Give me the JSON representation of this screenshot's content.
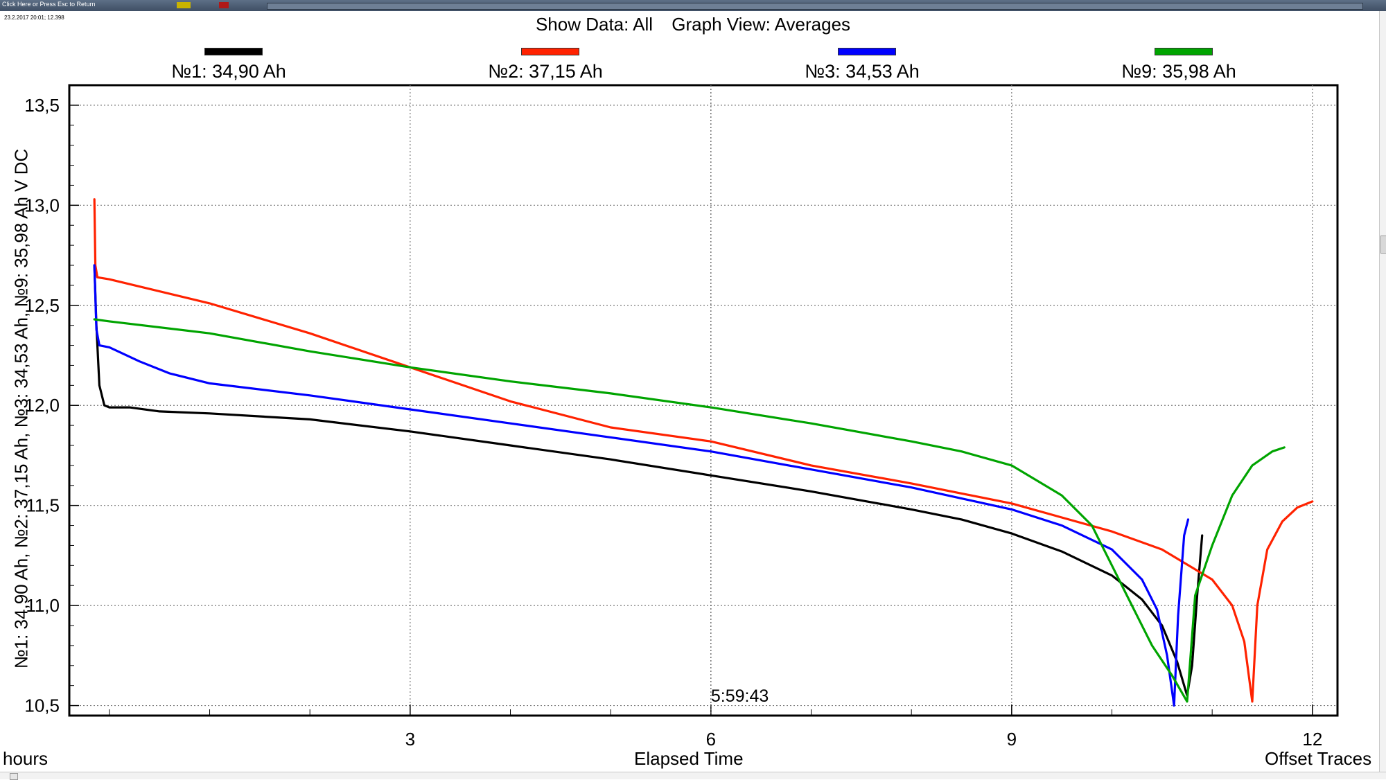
{
  "window": {
    "titlebar_text": "Click Here or Press Esc to Return",
    "timestamp": "23.2.2017 20:01; 12.398"
  },
  "header": {
    "show_data": "Show Data: All",
    "graph_view": "Graph View: Averages"
  },
  "legend": [
    {
      "label": "№1: 34,90 Ah",
      "color": "#000000"
    },
    {
      "label": "№2: 37,15 Ah",
      "color": "#ff2200"
    },
    {
      "label": "№3: 34,53 Ah",
      "color": "#0000ff"
    },
    {
      "label": "№9: 35,98 Ah",
      "color": "#00a400"
    }
  ],
  "axes": {
    "y_title": "№1: 34,90 Ah, №2: 37,15 Ah, №3: 34,53 Ah, №9: 35,98 Ah    V DC",
    "x_units": "hours",
    "x_title": "Elapsed Time",
    "offset_label": "Offset Traces",
    "cursor_time": "5:59:43"
  },
  "chart_data": {
    "type": "line",
    "title": "",
    "xlabel": "Elapsed Time",
    "ylabel": "V DC",
    "xlim": [
      -0.4,
      12.25
    ],
    "ylim": [
      10.45,
      13.6
    ],
    "x_ticks": [
      3,
      6,
      9,
      12
    ],
    "x_tick_labels": [
      "3",
      "6",
      "9",
      "12"
    ],
    "y_ticks": [
      10.5,
      11.0,
      11.5,
      12.0,
      12.5,
      13.0,
      13.5
    ],
    "y_tick_labels": [
      "10,5",
      "11,0",
      "11,5",
      "12,0",
      "12,5",
      "13,0",
      "13,5"
    ],
    "grid": true,
    "cursor_x": 6.0,
    "series": [
      {
        "name": "№1: 34,90 Ah",
        "color": "#000000",
        "points": [
          [
            -0.15,
            12.7
          ],
          [
            -0.13,
            12.4
          ],
          [
            -0.1,
            12.1
          ],
          [
            -0.05,
            12.0
          ],
          [
            0.0,
            11.99
          ],
          [
            0.2,
            11.99
          ],
          [
            0.5,
            11.97
          ],
          [
            1,
            11.96
          ],
          [
            2,
            11.93
          ],
          [
            3,
            11.87
          ],
          [
            4,
            11.8
          ],
          [
            5,
            11.73
          ],
          [
            6,
            11.65
          ],
          [
            7,
            11.57
          ],
          [
            8,
            11.48
          ],
          [
            8.5,
            11.43
          ],
          [
            9,
            11.36
          ],
          [
            9.5,
            11.27
          ],
          [
            10,
            11.15
          ],
          [
            10.3,
            11.03
          ],
          [
            10.5,
            10.9
          ],
          [
            10.65,
            10.72
          ],
          [
            10.75,
            10.55
          ],
          [
            10.8,
            10.7
          ],
          [
            10.85,
            11.05
          ],
          [
            10.9,
            11.35
          ]
        ]
      },
      {
        "name": "№2: 37,15 Ah",
        "color": "#ff2200",
        "points": [
          [
            -0.15,
            13.03
          ],
          [
            -0.14,
            12.7
          ],
          [
            -0.12,
            12.64
          ],
          [
            0,
            12.63
          ],
          [
            1,
            12.51
          ],
          [
            2,
            12.36
          ],
          [
            3,
            12.19
          ],
          [
            4,
            12.02
          ],
          [
            5,
            11.89
          ],
          [
            6,
            11.82
          ],
          [
            7,
            11.7
          ],
          [
            8,
            11.61
          ],
          [
            9,
            11.51
          ],
          [
            10,
            11.37
          ],
          [
            10.5,
            11.28
          ],
          [
            11,
            11.13
          ],
          [
            11.2,
            11.0
          ],
          [
            11.32,
            10.82
          ],
          [
            11.4,
            10.52
          ],
          [
            11.45,
            11.0
          ],
          [
            11.55,
            11.28
          ],
          [
            11.7,
            11.42
          ],
          [
            11.85,
            11.49
          ],
          [
            12.0,
            11.52
          ]
        ]
      },
      {
        "name": "№3: 34,53 Ah",
        "color": "#0000ff",
        "points": [
          [
            -0.15,
            12.7
          ],
          [
            -0.13,
            12.38
          ],
          [
            -0.1,
            12.3
          ],
          [
            0,
            12.29
          ],
          [
            0.3,
            12.22
          ],
          [
            0.6,
            12.16
          ],
          [
            1,
            12.11
          ],
          [
            2,
            12.05
          ],
          [
            3,
            11.98
          ],
          [
            4,
            11.91
          ],
          [
            5,
            11.84
          ],
          [
            6,
            11.77
          ],
          [
            7,
            11.68
          ],
          [
            8,
            11.59
          ],
          [
            9,
            11.48
          ],
          [
            9.5,
            11.4
          ],
          [
            10,
            11.28
          ],
          [
            10.3,
            11.13
          ],
          [
            10.45,
            10.98
          ],
          [
            10.55,
            10.75
          ],
          [
            10.62,
            10.5
          ],
          [
            10.66,
            10.95
          ],
          [
            10.72,
            11.35
          ],
          [
            10.76,
            11.43
          ]
        ]
      },
      {
        "name": "№9: 35,98 Ah",
        "color": "#00a400",
        "points": [
          [
            -0.15,
            12.43
          ],
          [
            0,
            12.42
          ],
          [
            1,
            12.36
          ],
          [
            2,
            12.27
          ],
          [
            3,
            12.19
          ],
          [
            4,
            12.12
          ],
          [
            5,
            12.06
          ],
          [
            6,
            11.99
          ],
          [
            7,
            11.91
          ],
          [
            8,
            11.82
          ],
          [
            8.5,
            11.77
          ],
          [
            9,
            11.7
          ],
          [
            9.5,
            11.55
          ],
          [
            9.8,
            11.4
          ],
          [
            10.0,
            11.2
          ],
          [
            10.2,
            11.0
          ],
          [
            10.4,
            10.8
          ],
          [
            10.6,
            10.65
          ],
          [
            10.75,
            10.52
          ],
          [
            10.83,
            11.05
          ],
          [
            11.0,
            11.3
          ],
          [
            11.2,
            11.55
          ],
          [
            11.4,
            11.7
          ],
          [
            11.6,
            11.77
          ],
          [
            11.72,
            11.79
          ]
        ]
      }
    ]
  }
}
